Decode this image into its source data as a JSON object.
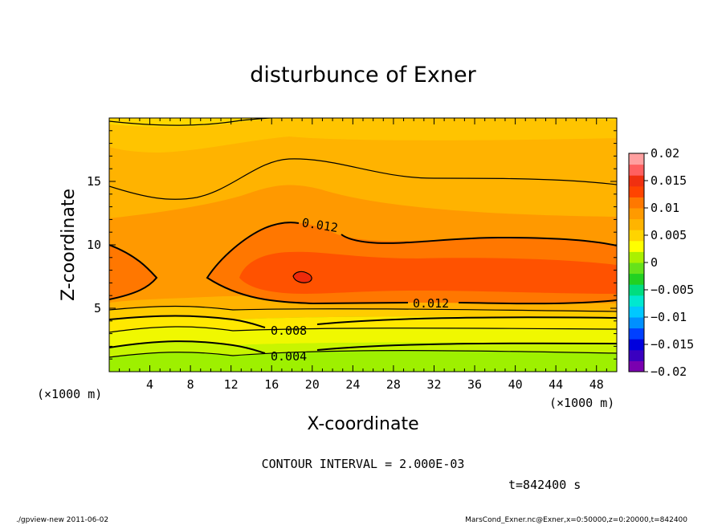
{
  "chart_data": {
    "type": "heatmap",
    "title": "disturbunce of Exner",
    "xlabel": "X-coordinate",
    "ylabel": "Z-coordinate",
    "x_unit": "(×1000 m)",
    "z_unit": "(×1000 m)",
    "x_ticks": [
      4,
      8,
      12,
      16,
      20,
      24,
      28,
      32,
      36,
      40,
      44,
      48
    ],
    "z_ticks": [
      5,
      10,
      15
    ],
    "xlim": [
      0,
      50
    ],
    "ylim": [
      0,
      20
    ],
    "colorbar": {
      "ticks": [
        "0.02",
        "0.015",
        "0.01",
        "0.005",
        "0",
        "−0.005",
        "−0.01",
        "−0.015",
        "−0.02"
      ],
      "range": [
        -0.02,
        0.02
      ],
      "colors": [
        "#7a00b0",
        "#3a00c0",
        "#0000dd",
        "#0040ff",
        "#0090ff",
        "#00c8ff",
        "#00e8d0",
        "#00dd80",
        "#22d122",
        "#66e21a",
        "#aaf000",
        "#ffff00",
        "#ffd400",
        "#ffb400",
        "#ff9a00",
        "#ff7800",
        "#ff4400",
        "#f03010",
        "#ff6060",
        "#ffa0a0"
      ]
    },
    "contour_labels": [
      "0.012",
      "0.012",
      "0.008",
      "0.004"
    ],
    "contour_interval_text": "CONTOUR INTERVAL = 2.000E-03",
    "time_text": "t=842400 s"
  },
  "footer": {
    "left": "./gpview-new   2011-06-02",
    "right": "MarsCond_Exner.nc@Exner,x=0:50000,z=0:20000,t=842400"
  }
}
